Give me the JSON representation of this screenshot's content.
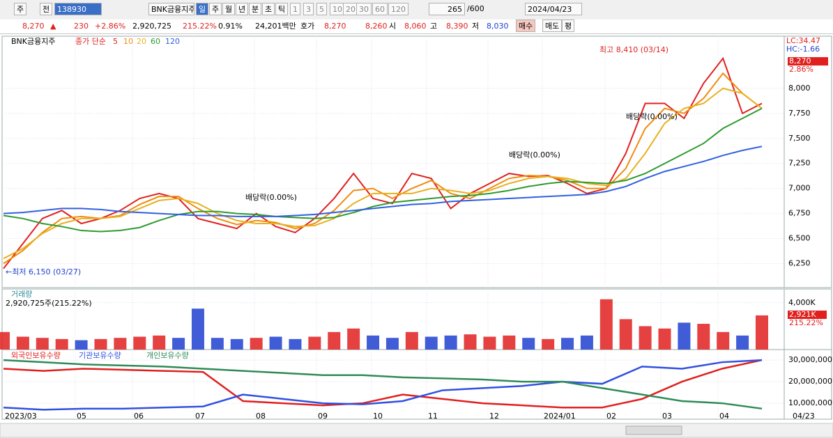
{
  "toolbar": {
    "market": "주",
    "prev": "전",
    "code": "138930",
    "name": "BNK금융지주",
    "periods": [
      "일",
      "주",
      "월",
      "년",
      "분",
      "초",
      "틱"
    ],
    "intervals": [
      "1",
      "3",
      "5",
      "10",
      "20",
      "30",
      "60",
      "120"
    ],
    "count": "265",
    "total": "/600",
    "date": "2024/04/23"
  },
  "quote": {
    "price": "8,270",
    "change": "230",
    "rate": "+2.86%",
    "volume": "2,920,725",
    "volume_ratio": "215.22%",
    "turnover": "0.91%",
    "amount": "24,201백만",
    "ask_label": "호가",
    "ask": "8,270",
    "bid": "8,260",
    "open_label": "시",
    "open": "8,060",
    "high_label": "고",
    "high": "8,390",
    "low_label": "저",
    "low": "8,030",
    "buttons": [
      "매수",
      "매도",
      "평"
    ]
  },
  "chart_data": [
    {
      "type": "line",
      "title": "BNK금융지주",
      "legend_prefix": "종가 단순",
      "grid": true,
      "series": [
        {
          "name": "5",
          "color": "#e0201e",
          "values": [
            6200,
            6450,
            6700,
            6780,
            6650,
            6700,
            6780,
            6900,
            6950,
            6900,
            6700,
            6650,
            6600,
            6750,
            6620,
            6560,
            6700,
            6900,
            7150,
            6900,
            6850,
            7150,
            7100,
            6800,
            6950,
            7050,
            7150,
            7120,
            7130,
            7050,
            6950,
            7000,
            7350,
            7850,
            7850,
            7700,
            8050,
            8300,
            7750,
            7850
          ]
        },
        {
          "name": "10",
          "color": "#f08c10",
          "values": [
            6250,
            6380,
            6560,
            6700,
            6720,
            6700,
            6730,
            6840,
            6920,
            6920,
            6800,
            6700,
            6640,
            6680,
            6660,
            6600,
            6650,
            6780,
            6980,
            7000,
            6900,
            7000,
            7080,
            6950,
            6900,
            7000,
            7100,
            7130,
            7120,
            7080,
            7000,
            7000,
            7200,
            7600,
            7800,
            7750,
            7900,
            8150,
            7950,
            7800
          ]
        },
        {
          "name": "20",
          "color": "#e8b020",
          "values": [
            6300,
            6400,
            6550,
            6650,
            6700,
            6700,
            6720,
            6800,
            6880,
            6900,
            6850,
            6750,
            6680,
            6650,
            6650,
            6620,
            6630,
            6700,
            6850,
            6950,
            6950,
            6950,
            7000,
            6980,
            6950,
            6980,
            7050,
            7100,
            7120,
            7100,
            7050,
            7030,
            7100,
            7350,
            7650,
            7800,
            7850,
            8000,
            7950,
            7800
          ]
        },
        {
          "name": "60",
          "color": "#2e9a2e",
          "values": [
            6730,
            6700,
            6650,
            6620,
            6580,
            6570,
            6580,
            6610,
            6680,
            6740,
            6770,
            6770,
            6750,
            6740,
            6720,
            6710,
            6700,
            6710,
            6760,
            6820,
            6860,
            6880,
            6900,
            6920,
            6930,
            6950,
            6980,
            7020,
            7050,
            7070,
            7060,
            7050,
            7080,
            7150,
            7250,
            7350,
            7450,
            7600,
            7700,
            7800
          ]
        },
        {
          "name": "120",
          "color": "#3060e0",
          "values": [
            6750,
            6760,
            6780,
            6800,
            6800,
            6790,
            6770,
            6760,
            6750,
            6740,
            6730,
            6730,
            6720,
            6720,
            6720,
            6730,
            6740,
            6760,
            6780,
            6800,
            6820,
            6840,
            6850,
            6870,
            6880,
            6890,
            6900,
            6910,
            6920,
            6930,
            6940,
            6970,
            7020,
            7100,
            7170,
            7220,
            7270,
            7330,
            7380,
            7420
          ]
        }
      ],
      "ylim": [
        6010,
        8500
      ],
      "yticks": [
        {
          "value": 6250,
          "label": "6,250"
        },
        {
          "value": 6500,
          "label": "6,500"
        },
        {
          "value": 6750,
          "label": "6,750"
        },
        {
          "value": 7000,
          "label": "7,000"
        },
        {
          "value": 7250,
          "label": "7,250"
        },
        {
          "value": 7500,
          "label": "7,500"
        },
        {
          "value": 7750,
          "label": "7,750"
        },
        {
          "value": 8000,
          "label": "8,000"
        }
      ],
      "high_note": "최고 8,410 (03/14)",
      "low_note": "←최저 6,150 (03/27)",
      "ex_dividend": [
        "배당락(0.00%)",
        "배당락(0.00%)",
        "배당락(0.00%)"
      ],
      "lc": "LC:34.47",
      "hc": "HC:-1.66",
      "last_price": {
        "value": 8270,
        "label": "8,270"
      },
      "last_rate": "2.86%"
    },
    {
      "type": "bar",
      "title": "거래량",
      "subtitle": "2,920,725주(215.22%)",
      "up_color": "#e0201e",
      "down_color": "#2040d0",
      "values": [
        1500,
        1100,
        1000,
        900,
        800,
        900,
        1000,
        1100,
        1200,
        1000,
        3500,
        1000,
        900,
        1000,
        1100,
        900,
        1100,
        1500,
        1800,
        1200,
        1000,
        1500,
        1100,
        1200,
        1300,
        1100,
        1200,
        1000,
        900,
        1000,
        1200,
        4300,
        2600,
        2000,
        1800,
        2300,
        2200,
        1500,
        1200,
        2921
      ],
      "ylim": [
        0,
        5000
      ],
      "yticks": [
        {
          "value": 4000,
          "label": "4,000K"
        }
      ],
      "last_label": "2,921K",
      "last_rate": "215.22%"
    },
    {
      "type": "line",
      "grid": true,
      "series": [
        {
          "name": "외국인보유수량",
          "color": "#e0201e",
          "values": [
            26000000,
            25000000,
            26000000,
            25500000,
            25000000,
            24500000,
            11000000,
            10000000,
            9000000,
            10000000,
            14000000,
            12000000,
            10000000,
            9000000,
            8000000,
            8000000,
            12000000,
            20000000,
            26000000,
            30000000
          ]
        },
        {
          "name": "기관보유수량",
          "color": "#3050e0",
          "values": [
            8000000,
            7000000,
            7500000,
            7500000,
            8000000,
            8500000,
            14000000,
            12000000,
            10000000,
            9500000,
            11000000,
            16000000,
            17000000,
            18000000,
            20000000,
            19000000,
            27000000,
            26000000,
            29000000,
            30000000
          ]
        },
        {
          "name": "개인보유수량",
          "color": "#2e8b57",
          "values": [
            30000000,
            29000000,
            28000000,
            27500000,
            27000000,
            26000000,
            25000000,
            24000000,
            23000000,
            23000000,
            22000000,
            21500000,
            21000000,
            20000000,
            20000000,
            17000000,
            14000000,
            11000000,
            10000000,
            7500000
          ]
        }
      ],
      "ylim": [
        2600000,
        33900000
      ],
      "yticks": [
        {
          "value": 10000000,
          "label": "10,000,000"
        },
        {
          "value": 20000000,
          "label": "20,000,000"
        },
        {
          "value": 30000000,
          "label": "30,000,000"
        }
      ],
      "x_labels": [
        "2023/03",
        "05",
        "06",
        "07",
        "08",
        "09",
        "10",
        "11",
        "12",
        "2024/01",
        "02",
        "03",
        "04",
        "04/23"
      ]
    }
  ]
}
